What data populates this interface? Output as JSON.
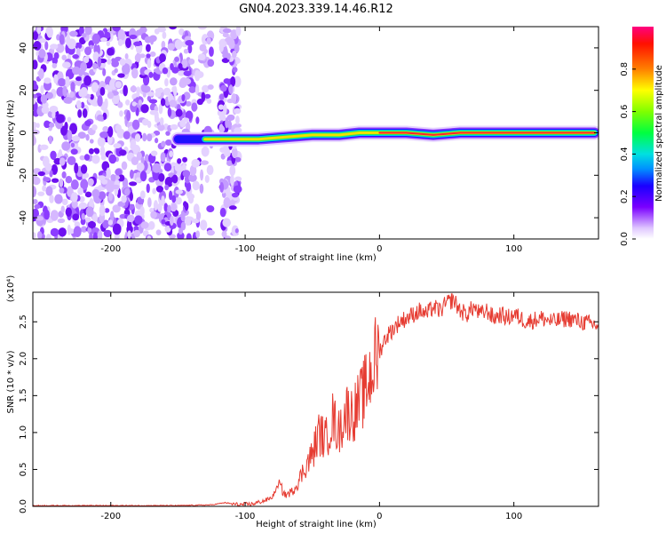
{
  "title": "GN04.2023.339.14.46.R12",
  "chart_data": [
    {
      "type": "heatmap",
      "xlabel": "Height of straight line (km)",
      "ylabel": "Frequency (Hz)",
      "xlim": [
        -258,
        163
      ],
      "ylim": [
        -50,
        50
      ],
      "xticks": [
        -200,
        -100,
        0,
        100
      ],
      "yticks": [
        -40,
        -20,
        0,
        20,
        40
      ],
      "colorbar": {
        "label": "Normalized spectral amplitude",
        "range": [
          0.0,
          1.0
        ],
        "ticks": [
          0.0,
          0.2,
          0.4,
          0.6,
          0.8
        ]
      },
      "description_series": [
        {
          "x": -240,
          "freq": -1
        },
        {
          "x": -150,
          "freq": -3
        },
        {
          "x": -130,
          "freq": -3
        },
        {
          "x": -110,
          "freq": -3
        },
        {
          "x": -90,
          "freq": -3
        },
        {
          "x": -70,
          "freq": -2
        },
        {
          "x": -50,
          "freq": -1
        },
        {
          "x": -30,
          "freq": -1
        },
        {
          "x": -15,
          "freq": 0
        },
        {
          "x": 0,
          "freq": 0
        },
        {
          "x": 20,
          "freq": 0
        },
        {
          "x": 40,
          "freq": -1
        },
        {
          "x": 60,
          "freq": 0
        },
        {
          "x": 80,
          "freq": 0
        },
        {
          "x": 100,
          "freq": 0
        },
        {
          "x": 130,
          "freq": 0
        },
        {
          "x": 160,
          "freq": 0
        }
      ]
    },
    {
      "type": "line",
      "xlabel": "Height of straight line (km)",
      "ylabel": "SNR (10 * v/v)",
      "yscale_label": "(x10⁴)",
      "xlim": [
        -258,
        163
      ],
      "ylim": [
        0.0,
        2.9
      ],
      "xticks": [
        -200,
        -100,
        0,
        100
      ],
      "yticks": [
        0.0,
        0.5,
        1.0,
        1.5,
        2.0,
        2.5
      ],
      "color": "#e63c32",
      "series": [
        {
          "x": [
            -258,
            -200,
            -150,
            -125,
            -115,
            -105,
            -95,
            -85,
            -80,
            -75,
            -70,
            -65,
            -60,
            -55,
            -50,
            -45,
            -40,
            -35,
            -30,
            -25,
            -20,
            -15,
            -10,
            -5,
            0,
            5,
            10,
            15,
            20,
            25,
            30,
            35,
            40,
            45,
            50,
            55,
            60,
            65,
            70,
            75,
            80,
            85,
            90,
            95,
            100,
            110,
            120,
            130,
            140,
            150,
            163
          ],
          "values": [
            0.01,
            0.01,
            0.01,
            0.02,
            0.05,
            0.02,
            0.03,
            0.08,
            0.12,
            0.3,
            0.15,
            0.2,
            0.35,
            0.55,
            0.7,
            1.0,
            0.9,
            1.2,
            1.0,
            1.3,
            1.25,
            1.4,
            1.6,
            1.9,
            2.1,
            2.3,
            2.4,
            2.5,
            2.55,
            2.6,
            2.65,
            2.6,
            2.7,
            2.65,
            2.75,
            2.8,
            2.65,
            2.6,
            2.7,
            2.6,
            2.65,
            2.55,
            2.6,
            2.55,
            2.6,
            2.5,
            2.55,
            2.5,
            2.55,
            2.5,
            2.45
          ]
        }
      ]
    }
  ]
}
